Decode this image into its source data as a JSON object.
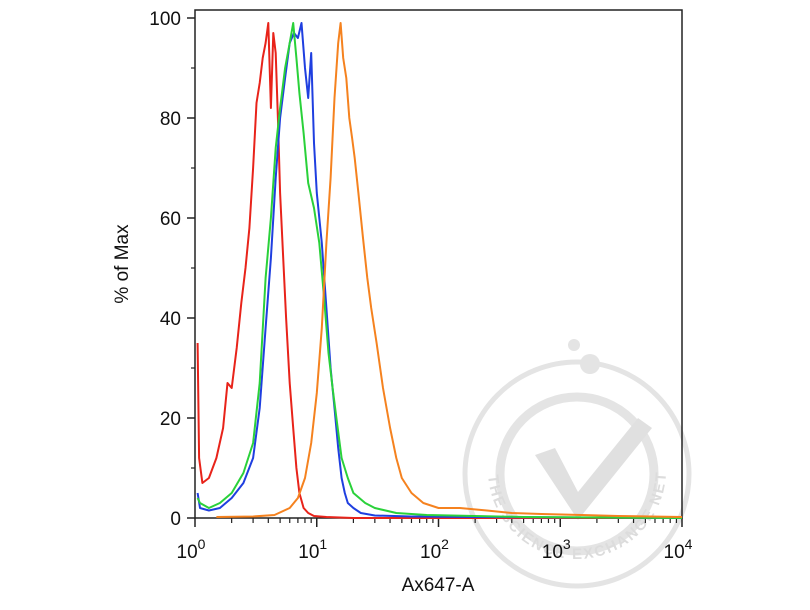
{
  "chart_data": {
    "type": "line",
    "xlabel": "Ax647-A",
    "ylabel": "% of Max",
    "x_scale": "log",
    "xlim": [
      1,
      10000
    ],
    "ylim": [
      0,
      100
    ],
    "x_ticks": [
      {
        "value": 1,
        "base": "10",
        "exp": "0"
      },
      {
        "value": 10,
        "base": "10",
        "exp": "1"
      },
      {
        "value": 100,
        "base": "10",
        "exp": "2"
      },
      {
        "value": 1000,
        "base": "10",
        "exp": "3"
      },
      {
        "value": 10000,
        "base": "10",
        "exp": "4"
      }
    ],
    "y_ticks": [
      0,
      20,
      40,
      60,
      80,
      100
    ],
    "grid": false,
    "series": [
      {
        "color": "#e8231a",
        "points": [
          [
            1.05,
            35
          ],
          [
            1.08,
            12
          ],
          [
            1.15,
            7
          ],
          [
            1.3,
            8
          ],
          [
            1.5,
            12
          ],
          [
            1.7,
            18
          ],
          [
            1.85,
            27
          ],
          [
            2.0,
            26
          ],
          [
            2.2,
            34
          ],
          [
            2.4,
            43
          ],
          [
            2.6,
            50
          ],
          [
            2.8,
            58
          ],
          [
            3.0,
            70
          ],
          [
            3.2,
            83
          ],
          [
            3.4,
            87
          ],
          [
            3.6,
            92
          ],
          [
            3.8,
            95
          ],
          [
            4.0,
            99
          ],
          [
            4.2,
            82
          ],
          [
            4.4,
            97
          ],
          [
            4.6,
            93
          ],
          [
            4.8,
            80
          ],
          [
            5.0,
            65
          ],
          [
            5.3,
            52
          ],
          [
            5.6,
            40
          ],
          [
            6.0,
            27
          ],
          [
            6.4,
            18
          ],
          [
            6.8,
            10
          ],
          [
            7.2,
            5
          ],
          [
            7.8,
            2
          ],
          [
            8.5,
            1
          ],
          [
            9.5,
            0.4
          ],
          [
            12,
            0.2
          ],
          [
            20,
            0
          ],
          [
            10000,
            0
          ]
        ]
      },
      {
        "color": "#1f3fe0",
        "points": [
          [
            1.05,
            5
          ],
          [
            1.1,
            2
          ],
          [
            1.3,
            1.5
          ],
          [
            1.6,
            2
          ],
          [
            2.0,
            4
          ],
          [
            2.5,
            7
          ],
          [
            3.0,
            12
          ],
          [
            3.4,
            22
          ],
          [
            3.8,
            38
          ],
          [
            4.2,
            52
          ],
          [
            4.6,
            68
          ],
          [
            5.0,
            80
          ],
          [
            5.5,
            88
          ],
          [
            6.0,
            95
          ],
          [
            6.5,
            97
          ],
          [
            7.0,
            96
          ],
          [
            7.5,
            99
          ],
          [
            8.0,
            90
          ],
          [
            8.5,
            84
          ],
          [
            9.0,
            93
          ],
          [
            9.5,
            75
          ],
          [
            10,
            65
          ],
          [
            11,
            55
          ],
          [
            12,
            42
          ],
          [
            13,
            30
          ],
          [
            14,
            22
          ],
          [
            15,
            14
          ],
          [
            16,
            8
          ],
          [
            17,
            5
          ],
          [
            18,
            3
          ],
          [
            20,
            2
          ],
          [
            23,
            1
          ],
          [
            30,
            0.5
          ],
          [
            60,
            0.3
          ],
          [
            200,
            0.2
          ],
          [
            10000,
            0
          ]
        ]
      },
      {
        "color": "#2ad13a",
        "points": [
          [
            1.05,
            4
          ],
          [
            1.1,
            3
          ],
          [
            1.3,
            2
          ],
          [
            1.6,
            3
          ],
          [
            2.0,
            5
          ],
          [
            2.5,
            9
          ],
          [
            3.0,
            15
          ],
          [
            3.4,
            27
          ],
          [
            3.8,
            48
          ],
          [
            4.2,
            60
          ],
          [
            4.6,
            74
          ],
          [
            5.0,
            82
          ],
          [
            5.5,
            90
          ],
          [
            6.0,
            95
          ],
          [
            6.4,
            99
          ],
          [
            6.8,
            92
          ],
          [
            7.2,
            85
          ],
          [
            7.8,
            77
          ],
          [
            8.5,
            67
          ],
          [
            9.5,
            62
          ],
          [
            10.5,
            55
          ],
          [
            11.5,
            44
          ],
          [
            12.5,
            33
          ],
          [
            13.5,
            26
          ],
          [
            14.5,
            20
          ],
          [
            16,
            12
          ],
          [
            18,
            8
          ],
          [
            20,
            5
          ],
          [
            25,
            3
          ],
          [
            30,
            2
          ],
          [
            45,
            1
          ],
          [
            80,
            0.6
          ],
          [
            200,
            0.4
          ],
          [
            500,
            0.2
          ],
          [
            10000,
            0
          ]
        ]
      },
      {
        "color": "#f5821f",
        "points": [
          [
            1.5,
            0.2
          ],
          [
            3.0,
            0.3
          ],
          [
            4.5,
            0.6
          ],
          [
            6.0,
            2
          ],
          [
            7.0,
            4
          ],
          [
            8.0,
            8
          ],
          [
            9.0,
            15
          ],
          [
            10,
            25
          ],
          [
            11,
            38
          ],
          [
            12,
            55
          ],
          [
            13,
            68
          ],
          [
            14,
            84
          ],
          [
            15,
            95
          ],
          [
            15.7,
            99
          ],
          [
            16.5,
            92
          ],
          [
            17.5,
            88
          ],
          [
            18.5,
            80
          ],
          [
            19.5,
            76
          ],
          [
            20.5,
            72
          ],
          [
            22,
            65
          ],
          [
            24,
            56
          ],
          [
            26,
            48
          ],
          [
            28,
            42
          ],
          [
            31,
            35
          ],
          [
            35,
            26
          ],
          [
            40,
            18
          ],
          [
            45,
            12
          ],
          [
            50,
            8
          ],
          [
            60,
            5
          ],
          [
            75,
            3
          ],
          [
            100,
            2
          ],
          [
            150,
            2
          ],
          [
            250,
            1.5
          ],
          [
            400,
            1
          ],
          [
            700,
            0.8
          ],
          [
            1500,
            0.6
          ],
          [
            3000,
            0.4
          ],
          [
            10000,
            0.2
          ]
        ]
      }
    ]
  },
  "watermark": {
    "text": "THE SCIENCE EXCHANGE NETWORK",
    "color": "#dcdcdc"
  }
}
